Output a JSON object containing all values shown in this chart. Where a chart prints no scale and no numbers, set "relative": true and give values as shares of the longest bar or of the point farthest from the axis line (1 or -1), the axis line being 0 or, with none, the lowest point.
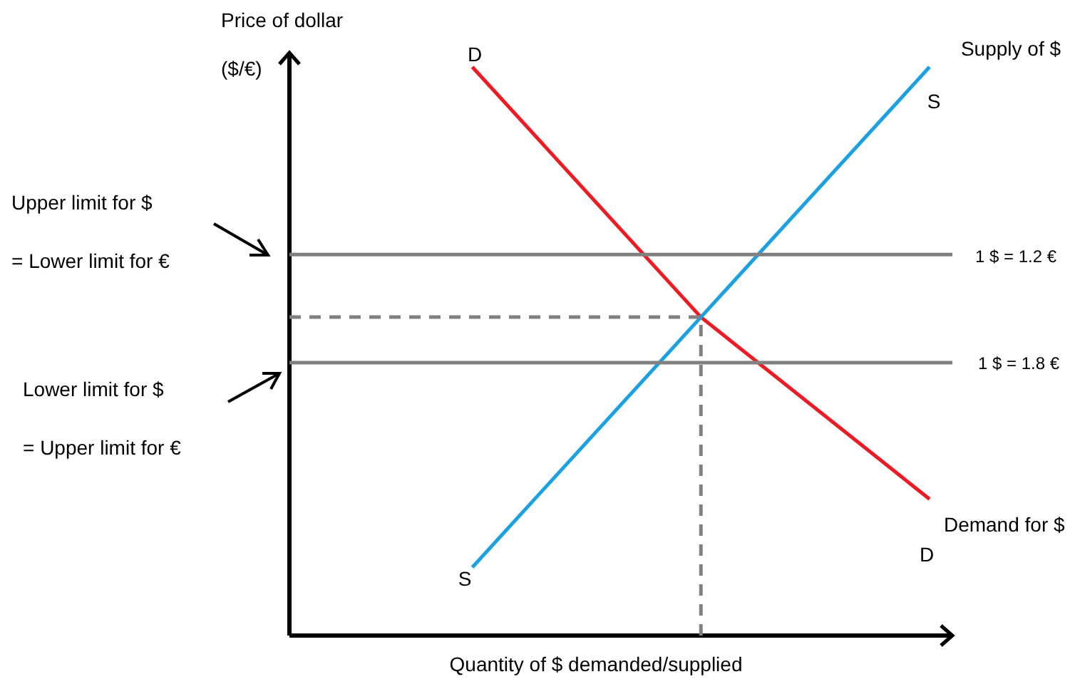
{
  "chart_data": {
    "type": "line",
    "relative": true,
    "xlabel": "Quantity of $ demanded/supplied",
    "ylabel": "Price of dollar\n($/€)",
    "categories": [
      null,
      null,
      null
    ],
    "series": [
      {
        "name": "Demand for $",
        "color": "#ed1c24",
        "values": [
          1,
          0.56,
          0.24
        ]
      },
      {
        "name": "Supply of $",
        "color": "#1ba1e2",
        "values": [
          0.12,
          0.56,
          1
        ]
      }
    ],
    "ref_lines": [
      {
        "axis": "y",
        "value": 0.67,
        "color": "#808080"
      },
      {
        "axis": "y",
        "value": 0.48,
        "color": "#808080"
      },
      {
        "axis": "y",
        "value": 0.56,
        "color": "#808080",
        "line_style": "dashed"
      }
    ],
    "annotations": [
      "D",
      "S",
      "D",
      "S",
      "Upper limit for $\n= Lower limit for €",
      "Lower limit for $\n= Upper limit for €",
      "1 $ = 1.2 €",
      "1 $ = 1.8 €"
    ]
  }
}
